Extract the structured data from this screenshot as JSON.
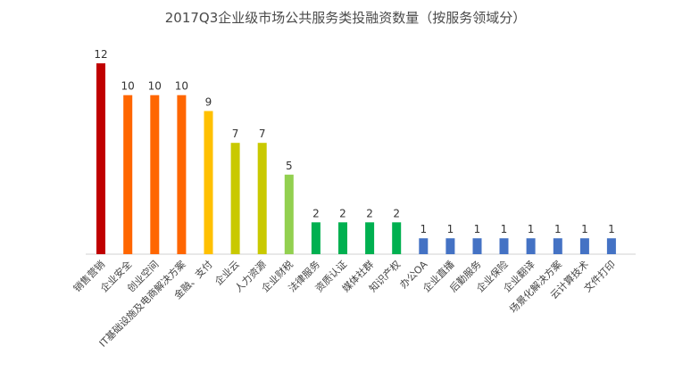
{
  "chart_data": {
    "type": "bar",
    "title": "2017Q3企业级市场公共服务类投融资数量（按服务领域分）",
    "categories": [
      "销售营销",
      "企业安全",
      "创业空间",
      "IT基础设施及电商解决方案",
      "金融、支付",
      "企业云",
      "人力资源",
      "企业财税",
      "法律服务",
      "资质认证",
      "媒体社群",
      "知识产权",
      "办公OA",
      "企业直播",
      "后勤服务",
      "企业保险",
      "企业翻译",
      "场景化解决方案",
      "云计算技术",
      "文件打印"
    ],
    "values": [
      12,
      10,
      10,
      10,
      9,
      7,
      7,
      5,
      2,
      2,
      2,
      2,
      1,
      1,
      1,
      1,
      1,
      1,
      1,
      1
    ],
    "colors": [
      "#c00000",
      "#ff6600",
      "#ff6600",
      "#ff6600",
      "#ffc000",
      "#c9c900",
      "#c9c900",
      "#92d050",
      "#00b050",
      "#00b050",
      "#00b050",
      "#00b050",
      "#4472c4",
      "#4472c4",
      "#4472c4",
      "#4472c4",
      "#4472c4",
      "#4472c4",
      "#4472c4",
      "#4472c4"
    ],
    "ylim": [
      0,
      12
    ],
    "grid": false,
    "legend": "none"
  }
}
